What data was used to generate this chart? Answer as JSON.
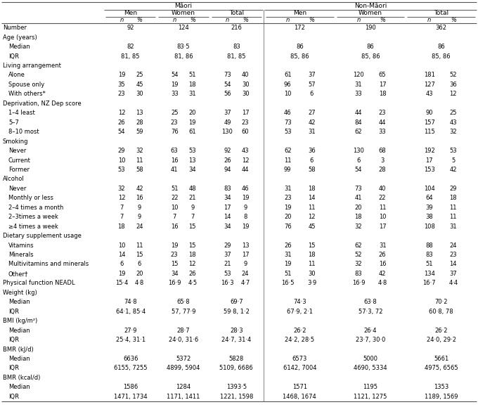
{
  "title_maori": "Māori",
  "title_nonmaori": "Non-Māori",
  "rows": [
    {
      "label": "Number",
      "indent": 0,
      "type": "merged",
      "vals": [
        "92",
        "124",
        "216",
        "172",
        "190",
        "362"
      ]
    },
    {
      "label": "Age (years)",
      "indent": 0,
      "type": "section",
      "vals": []
    },
    {
      "label": "Median",
      "indent": 1,
      "type": "merged",
      "vals": [
        "82",
        "83·5",
        "83",
        "86",
        "86",
        "86"
      ]
    },
    {
      "label": "IQR",
      "indent": 1,
      "type": "merged",
      "vals": [
        "81, 85",
        "81, 86",
        "81, 85",
        "85, 86",
        "85, 86",
        "85, 86"
      ]
    },
    {
      "label": "Living arrangement",
      "indent": 0,
      "type": "section",
      "vals": []
    },
    {
      "label": "Alone",
      "indent": 1,
      "type": "full",
      "vals": [
        "19",
        "25",
        "54",
        "51",
        "73",
        "40",
        "61",
        "37",
        "120",
        "65",
        "181",
        "52"
      ]
    },
    {
      "label": "Spouse only",
      "indent": 1,
      "type": "full",
      "vals": [
        "35",
        "45",
        "19",
        "18",
        "54",
        "30",
        "96",
        "57",
        "31",
        "17",
        "127",
        "36"
      ]
    },
    {
      "label": "With others*",
      "indent": 1,
      "type": "full",
      "vals": [
        "23",
        "30",
        "33",
        "31",
        "56",
        "30",
        "10",
        "6",
        "33",
        "18",
        "43",
        "12"
      ]
    },
    {
      "label": "Deprivation, NZ Dep score",
      "indent": 0,
      "type": "section",
      "vals": []
    },
    {
      "label": "1–4 least",
      "indent": 1,
      "type": "full",
      "vals": [
        "12",
        "13",
        "25",
        "20",
        "37",
        "17",
        "46",
        "27",
        "44",
        "23",
        "90",
        "25"
      ]
    },
    {
      "label": "5–7",
      "indent": 1,
      "type": "full",
      "vals": [
        "26",
        "28",
        "23",
        "19",
        "49",
        "23",
        "73",
        "42",
        "84",
        "44",
        "157",
        "43"
      ]
    },
    {
      "label": "8–10 most",
      "indent": 1,
      "type": "full",
      "vals": [
        "54",
        "59",
        "76",
        "61",
        "130",
        "60",
        "53",
        "31",
        "62",
        "33",
        "115",
        "32"
      ]
    },
    {
      "label": "Smoking",
      "indent": 0,
      "type": "section",
      "vals": []
    },
    {
      "label": "Never",
      "indent": 1,
      "type": "full",
      "vals": [
        "29",
        "32",
        "63",
        "53",
        "92",
        "43",
        "62",
        "36",
        "130",
        "68",
        "192",
        "53"
      ]
    },
    {
      "label": "Current",
      "indent": 1,
      "type": "full",
      "vals": [
        "10",
        "11",
        "16",
        "13",
        "26",
        "12",
        "11",
        "6",
        "6",
        "3",
        "17",
        "5"
      ]
    },
    {
      "label": "Former",
      "indent": 1,
      "type": "full",
      "vals": [
        "53",
        "58",
        "41",
        "34",
        "94",
        "44",
        "99",
        "58",
        "54",
        "28",
        "153",
        "42"
      ]
    },
    {
      "label": "Alcohol",
      "indent": 0,
      "type": "section",
      "vals": []
    },
    {
      "label": "Never",
      "indent": 1,
      "type": "full",
      "vals": [
        "32",
        "42",
        "51",
        "48",
        "83",
        "46",
        "31",
        "18",
        "73",
        "40",
        "104",
        "29"
      ]
    },
    {
      "label": "Monthly or less",
      "indent": 1,
      "type": "full",
      "vals": [
        "12",
        "16",
        "22",
        "21",
        "34",
        "19",
        "23",
        "14",
        "41",
        "22",
        "64",
        "18"
      ]
    },
    {
      "label": "2–4 times a month",
      "indent": 1,
      "type": "full",
      "vals": [
        "7",
        "9",
        "10",
        "9",
        "17",
        "9",
        "19",
        "11",
        "20",
        "11",
        "39",
        "11"
      ]
    },
    {
      "label": "2–3times a week",
      "indent": 1,
      "type": "full",
      "vals": [
        "7",
        "9",
        "7",
        "7",
        "14",
        "8",
        "20",
        "12",
        "18",
        "10",
        "38",
        "11"
      ]
    },
    {
      "label": "≥4 times a week",
      "indent": 1,
      "type": "full",
      "vals": [
        "18",
        "24",
        "16",
        "15",
        "34",
        "19",
        "76",
        "45",
        "32",
        "17",
        "108",
        "31"
      ]
    },
    {
      "label": "Dietary supplement usage",
      "indent": 0,
      "type": "section",
      "vals": []
    },
    {
      "label": "Vitamins",
      "indent": 1,
      "type": "full",
      "vals": [
        "10",
        "11",
        "19",
        "15",
        "29",
        "13",
        "26",
        "15",
        "62",
        "31",
        "88",
        "24"
      ]
    },
    {
      "label": "Minerals",
      "indent": 1,
      "type": "full",
      "vals": [
        "14",
        "15",
        "23",
        "18",
        "37",
        "17",
        "31",
        "18",
        "52",
        "26",
        "83",
        "23"
      ]
    },
    {
      "label": "Multivitamins and minerals",
      "indent": 1,
      "type": "full",
      "vals": [
        "6",
        "6",
        "15",
        "12",
        "21",
        "9",
        "19",
        "11",
        "32",
        "16",
        "51",
        "14"
      ]
    },
    {
      "label": "Other†",
      "indent": 1,
      "type": "full",
      "vals": [
        "19",
        "20",
        "34",
        "26",
        "53",
        "24",
        "51",
        "30",
        "83",
        "42",
        "134",
        "37"
      ]
    },
    {
      "label": "Physical function NEADL",
      "indent": 0,
      "type": "full",
      "vals": [
        "15·4",
        "4·8",
        "16·9",
        "4·5",
        "16·3",
        "4·7",
        "16·5",
        "3·9",
        "16·9",
        "4·8",
        "16·7",
        "4·4"
      ]
    },
    {
      "label": "Weight (kg)",
      "indent": 0,
      "type": "section",
      "vals": []
    },
    {
      "label": "Median",
      "indent": 1,
      "type": "merged",
      "vals": [
        "74·8",
        "65·8",
        "69·7",
        "74·3",
        "63·8",
        "70·2"
      ]
    },
    {
      "label": "IQR",
      "indent": 1,
      "type": "merged",
      "vals": [
        "64·1, 85·4",
        "57, 77·9",
        "59·8, 1·2",
        "67·9, 2·1",
        "57·3, 72",
        "60·8, 78"
      ]
    },
    {
      "label": "BMI (kg/m²)",
      "indent": 0,
      "type": "section",
      "vals": []
    },
    {
      "label": "Median",
      "indent": 1,
      "type": "merged",
      "vals": [
        "27·9",
        "28·7",
        "28·3",
        "26·2",
        "26·4",
        "26·2"
      ]
    },
    {
      "label": "IQR",
      "indent": 1,
      "type": "merged",
      "vals": [
        "25·4, 31·1",
        "24·0, 31·6",
        "24·7, 31·4",
        "24·2, 28·5",
        "23·7, 30·0",
        "24·0, 29·2"
      ]
    },
    {
      "label": "BMR (kJ/d)",
      "indent": 0,
      "type": "section",
      "vals": []
    },
    {
      "label": "Median",
      "indent": 1,
      "type": "merged",
      "vals": [
        "6636",
        "5372",
        "5828",
        "6573",
        "5000",
        "5661"
      ]
    },
    {
      "label": "IQR",
      "indent": 1,
      "type": "merged",
      "vals": [
        "6155, 7255",
        "4899, 5904",
        "5109, 6686",
        "6142, 7004",
        "4690, 5334",
        "4975, 6565"
      ]
    },
    {
      "label": "BMR (kcal/d)",
      "indent": 0,
      "type": "section",
      "vals": []
    },
    {
      "label": "Median",
      "indent": 1,
      "type": "merged",
      "vals": [
        "1586",
        "1284",
        "1393·5",
        "1571",
        "1195",
        "1353"
      ]
    },
    {
      "label": "IQR",
      "indent": 1,
      "type": "merged",
      "vals": [
        "1471, 1734",
        "1171, 1411",
        "1221, 1598",
        "1468, 1674",
        "1121, 1275",
        "1189, 1569"
      ]
    }
  ],
  "bg_color": "#ffffff",
  "line_color": "#555555",
  "font_size": 6.0,
  "header_font_size": 6.5
}
